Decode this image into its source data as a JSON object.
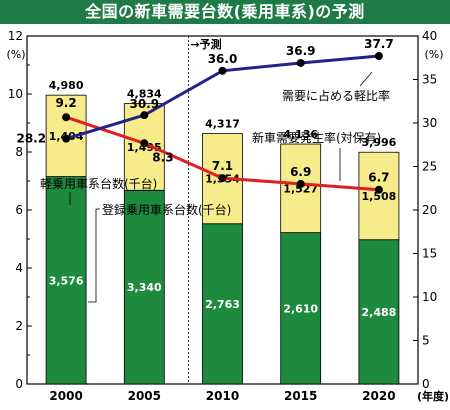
{
  "title": "全国の新車需要台数(乗用車系)の予測",
  "forecast_marker": "→予測",
  "left_axis_unit": "(%)",
  "right_axis_unit": "(%)",
  "x_axis_unit": "(年度)",
  "chart_data": {
    "type": "bar",
    "stacked": true,
    "categories": [
      "2000",
      "2005",
      "2010",
      "2015",
      "2020"
    ],
    "series": [
      {
        "name": "登録乗用車系台数(千台)",
        "values": [
          3576,
          3340,
          2763,
          2610,
          2488
        ],
        "color": "#1e8a3e",
        "label_color": "#ffffff"
      },
      {
        "name": "軽乗用車系台数(千台)",
        "values": [
          1404,
          1495,
          1554,
          1527,
          1508
        ],
        "color": "#f7ec8c",
        "label_color": "#000000"
      }
    ],
    "totals": [
      4980,
      4834,
      4317,
      4136,
      3996
    ],
    "totals_labels": [
      "4,980",
      "4,834",
      "4,317",
      "4,136",
      "3,996"
    ],
    "bar_labels": {
      "registered": [
        "3,576",
        "3,340",
        "2,763",
        "2,610",
        "2,488"
      ],
      "kei": [
        "1,404",
        "1,495",
        "1,554",
        "1,527",
        "1,508"
      ]
    },
    "lines": [
      {
        "name": "需要に占める軽比率",
        "axis": "right",
        "values": [
          28.2,
          30.9,
          36.0,
          36.9,
          37.7
        ],
        "labels": [
          "28.2",
          "30.9",
          "36.0",
          "36.9",
          "37.7"
        ],
        "color": "#22228a"
      },
      {
        "name": "新車需要発生率(対保有)",
        "axis": "left",
        "values": [
          9.2,
          8.3,
          7.1,
          6.9,
          6.7
        ],
        "labels": [
          "9.2",
          "8.3",
          "7.1",
          "6.9",
          "6.7"
        ],
        "color": "#e02020"
      }
    ],
    "left_axis": {
      "unit": "%",
      "ylim": [
        0,
        12
      ],
      "ticks": [
        "0",
        "2",
        "4",
        "6",
        "8",
        "10",
        "12"
      ]
    },
    "right_axis": {
      "unit": "%",
      "ylim": [
        0,
        40
      ],
      "ticks": [
        "0",
        "5",
        "10",
        "15",
        "20",
        "25",
        "30",
        "35",
        "40"
      ]
    },
    "bar_scale": {
      "ylim": [
        0,
        6000
      ]
    },
    "forecast_from": "2010",
    "grid": false
  }
}
